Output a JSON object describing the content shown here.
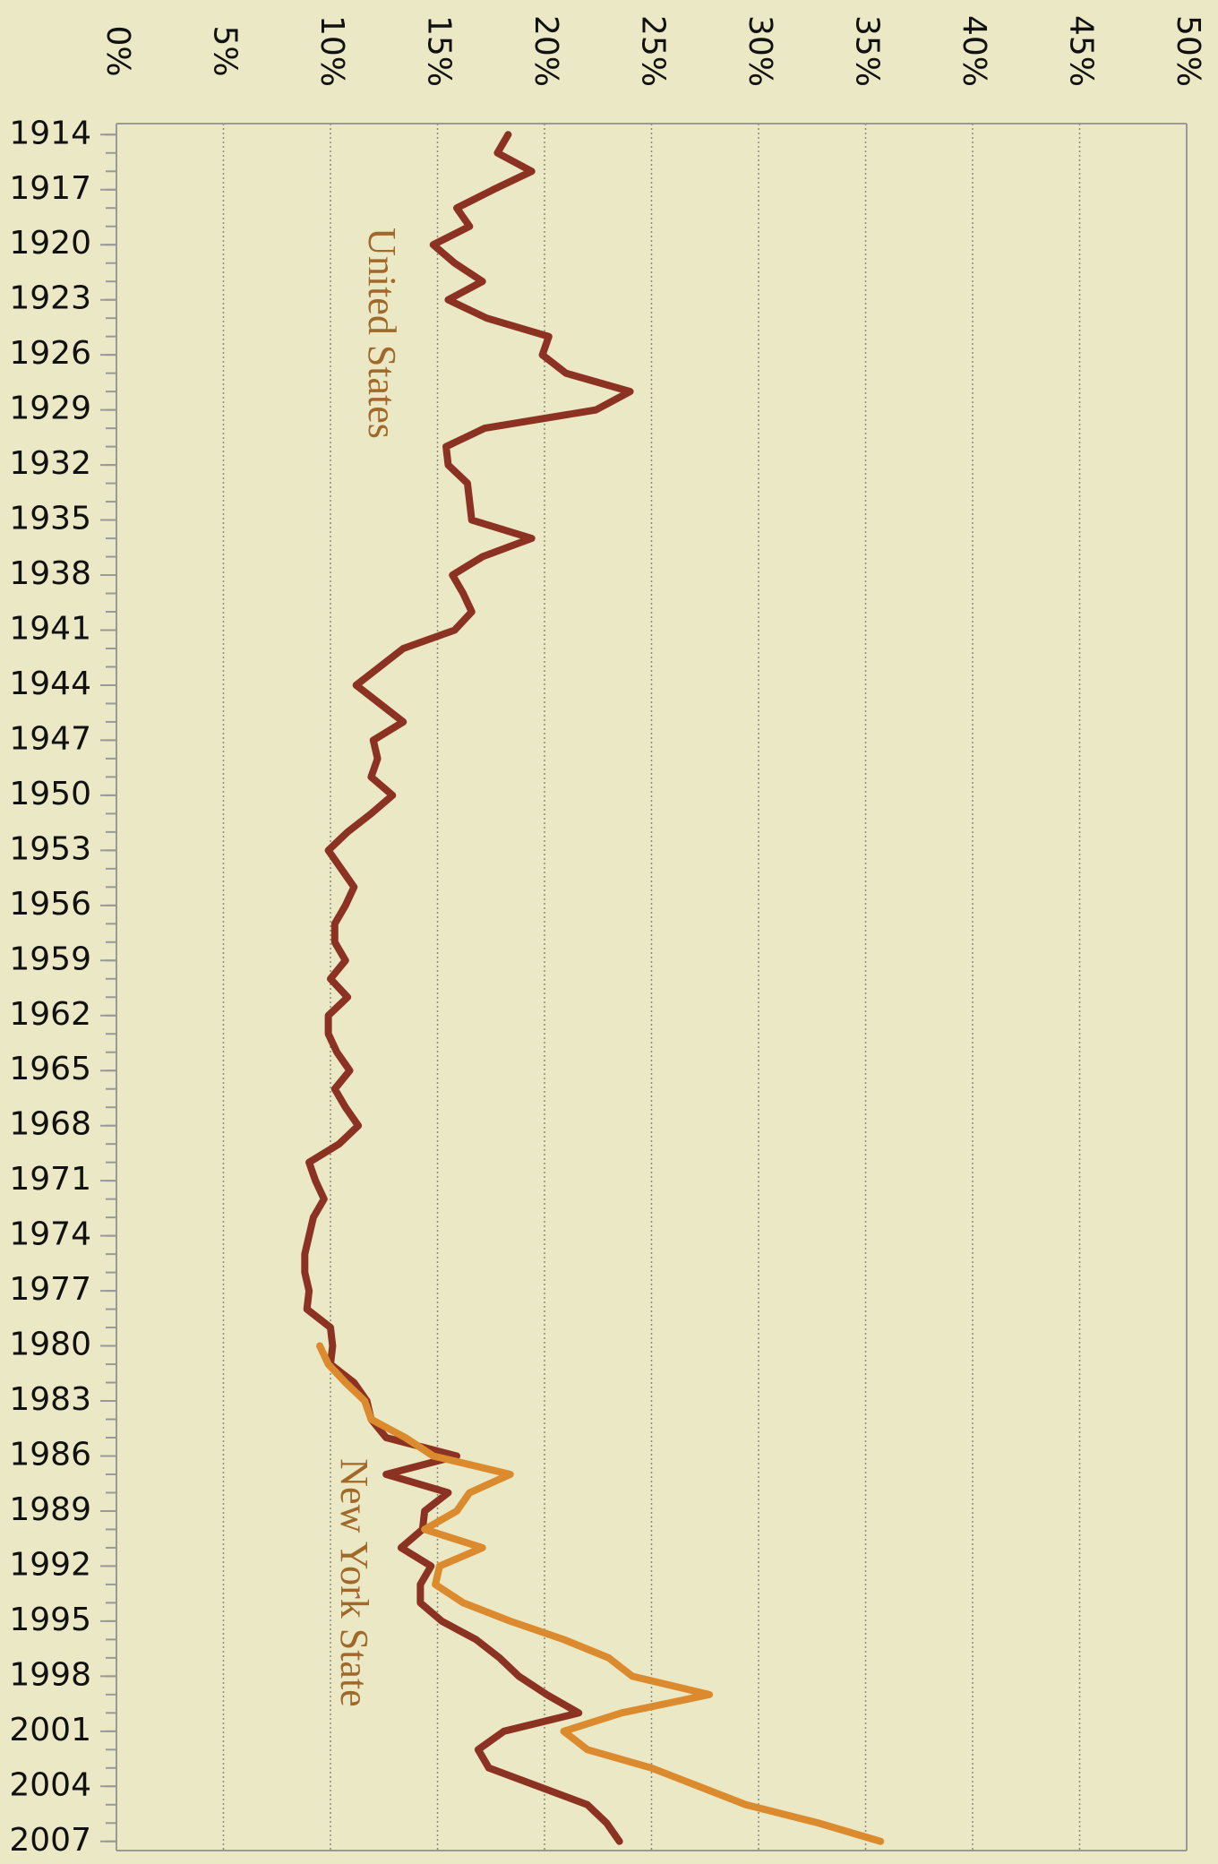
{
  "chart_data": {
    "type": "line",
    "orientation": "vertical",
    "x": [
      1914,
      1915,
      1916,
      1917,
      1918,
      1919,
      1920,
      1921,
      1922,
      1923,
      1924,
      1925,
      1926,
      1927,
      1928,
      1929,
      1930,
      1931,
      1932,
      1933,
      1934,
      1935,
      1936,
      1937,
      1938,
      1939,
      1940,
      1941,
      1942,
      1943,
      1944,
      1945,
      1946,
      1947,
      1948,
      1949,
      1950,
      1951,
      1952,
      1953,
      1954,
      1955,
      1956,
      1957,
      1958,
      1959,
      1960,
      1961,
      1962,
      1963,
      1964,
      1965,
      1966,
      1967,
      1968,
      1969,
      1970,
      1971,
      1972,
      1973,
      1974,
      1975,
      1976,
      1977,
      1978,
      1979,
      1980,
      1981,
      1982,
      1983,
      1984,
      1985,
      1986,
      1987,
      1988,
      1989,
      1990,
      1991,
      1992,
      1993,
      1994,
      1995,
      1996,
      1997,
      1998,
      1999,
      2000,
      2001,
      2002,
      2003,
      2004,
      2005,
      2006,
      2007
    ],
    "series": [
      {
        "name": "United States",
        "color": "#8b3222",
        "values": [
          18.3,
          17.8,
          19.4,
          17.6,
          15.9,
          16.5,
          14.8,
          15.8,
          17.1,
          15.5,
          17.3,
          20.2,
          19.9,
          21.0,
          24.0,
          22.4,
          17.2,
          15.4,
          15.5,
          16.4,
          16.5,
          16.6,
          19.4,
          17.1,
          15.7,
          16.2,
          16.6,
          15.8,
          13.4,
          12.3,
          11.2,
          12.3,
          13.4,
          12.0,
          12.2,
          11.9,
          12.9,
          11.9,
          10.8,
          9.9,
          10.5,
          11.1,
          10.7,
          10.2,
          10.2,
          10.7,
          10.0,
          10.8,
          9.9,
          9.9,
          10.3,
          10.9,
          10.2,
          10.7,
          11.3,
          10.4,
          9.0,
          9.3,
          9.7,
          9.2,
          9.0,
          8.8,
          8.8,
          9.0,
          8.9,
          10.0,
          10.1,
          10.0,
          11.1,
          11.7,
          11.9,
          12.6,
          15.9,
          12.6,
          15.5,
          14.4,
          14.3,
          13.3,
          14.7,
          14.2,
          14.2,
          15.2,
          16.8,
          17.9,
          18.8,
          20.1,
          21.6,
          18.1,
          16.9,
          17.4,
          19.7,
          22.0,
          22.9,
          23.5
        ]
      },
      {
        "name": "New York State",
        "color": "#dc8a2e",
        "values": [
          null,
          null,
          null,
          null,
          null,
          null,
          null,
          null,
          null,
          null,
          null,
          null,
          null,
          null,
          null,
          null,
          null,
          null,
          null,
          null,
          null,
          null,
          null,
          null,
          null,
          null,
          null,
          null,
          null,
          null,
          null,
          null,
          null,
          null,
          null,
          null,
          null,
          null,
          null,
          null,
          null,
          null,
          null,
          null,
          null,
          null,
          null,
          null,
          null,
          null,
          null,
          null,
          null,
          null,
          null,
          null,
          null,
          null,
          null,
          null,
          null,
          null,
          null,
          null,
          null,
          null,
          9.5,
          9.9,
          10.7,
          11.6,
          11.9,
          13.5,
          14.8,
          18.4,
          16.5,
          15.9,
          14.4,
          17.1,
          15.1,
          14.9,
          16.2,
          18.4,
          20.9,
          23.0,
          24.1,
          27.7,
          23.6,
          20.9,
          22.0,
          25.0,
          27.2,
          29.4,
          32.8,
          35.7
        ]
      }
    ],
    "xlim": [
      1913.4,
      2007.5
    ],
    "xticks": [
      1914,
      1917,
      1920,
      1923,
      1926,
      1929,
      1932,
      1935,
      1938,
      1941,
      1944,
      1947,
      1950,
      1953,
      1956,
      1959,
      1962,
      1965,
      1968,
      1971,
      1974,
      1977,
      1980,
      1983,
      1986,
      1989,
      1992,
      1995,
      1998,
      2001,
      2004,
      2007
    ],
    "ylim": [
      0,
      50
    ],
    "yticks": [
      {
        "value": 0,
        "label": "0%"
      },
      {
        "value": 5,
        "label": "5%"
      },
      {
        "value": 10,
        "label": "10%"
      },
      {
        "value": 15,
        "label": "15%"
      },
      {
        "value": 20,
        "label": "20%"
      },
      {
        "value": 25,
        "label": "25%"
      },
      {
        "value": 30,
        "label": "30%"
      },
      {
        "value": 35,
        "label": "35%"
      },
      {
        "value": 40,
        "label": "40%"
      },
      {
        "value": 45,
        "label": "45%"
      },
      {
        "value": 50,
        "label": "50%"
      }
    ],
    "grid": true
  }
}
